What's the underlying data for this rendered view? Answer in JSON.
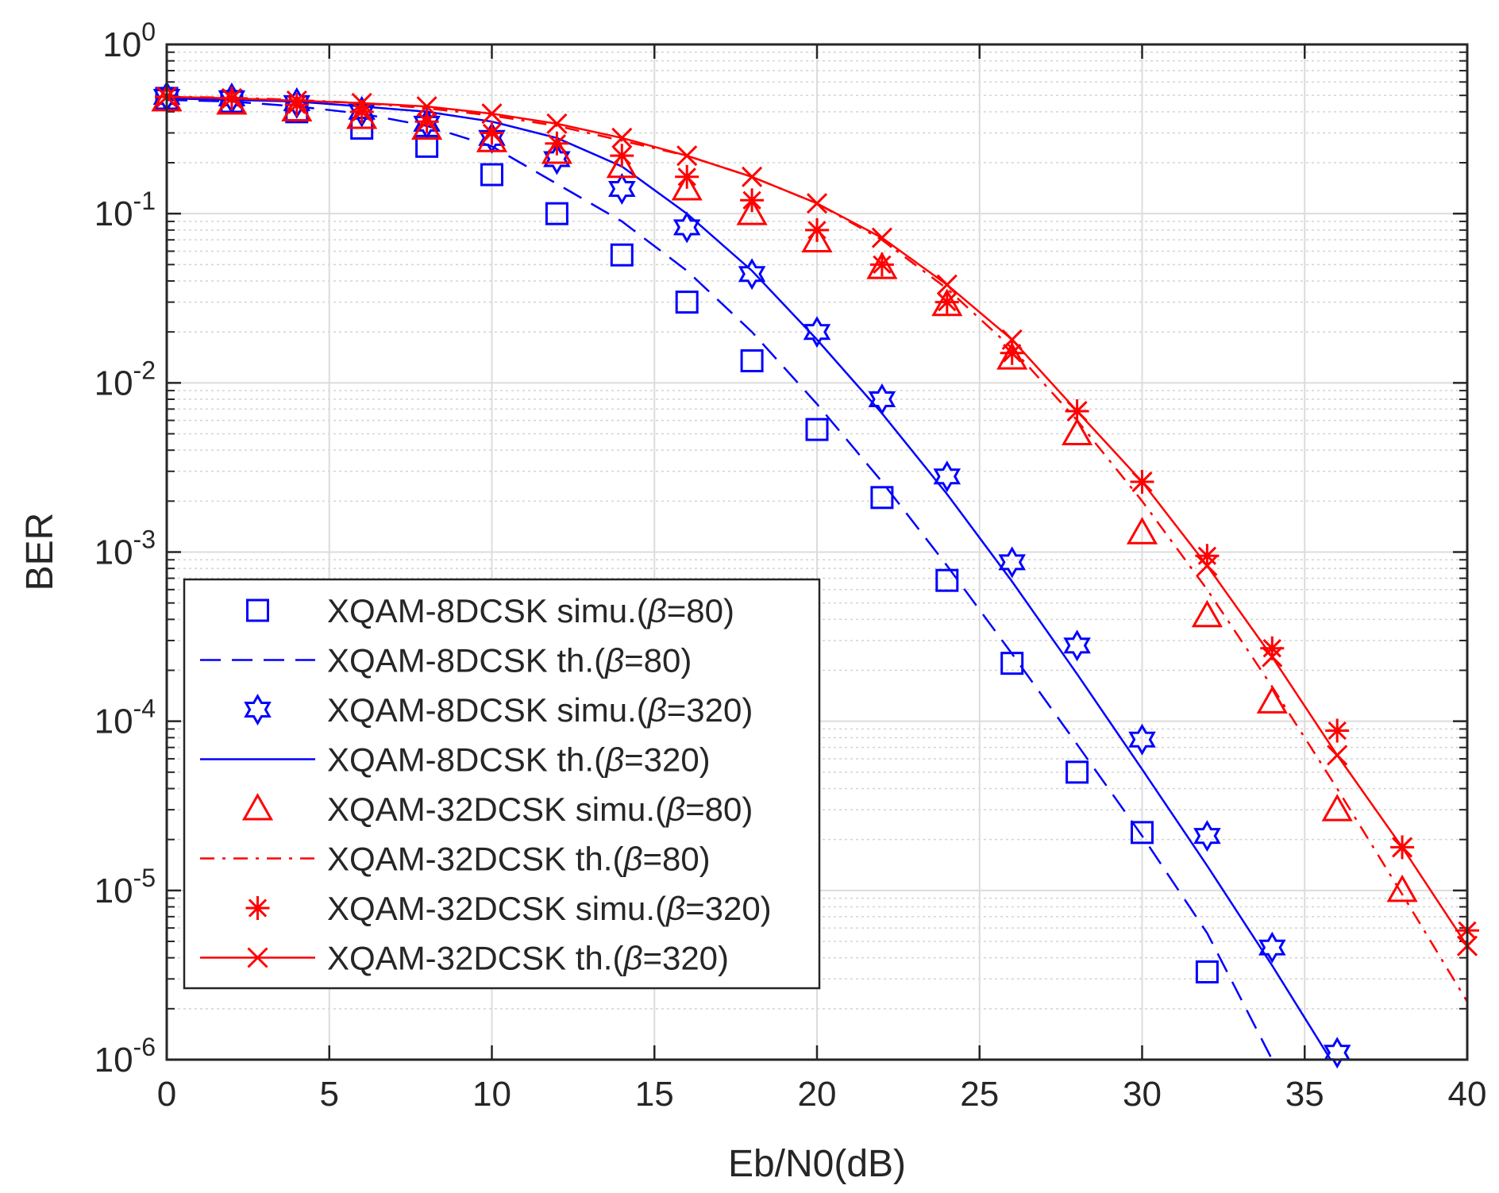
{
  "chart_data": {
    "type": "line",
    "title": "",
    "xlabel": "Eb/N0(dB)",
    "ylabel": "BER",
    "xlim": [
      0,
      40
    ],
    "ylim": [
      1e-06,
      1
    ],
    "yscale": "log",
    "grid": true,
    "minor_grid": true,
    "legend_position": "bottom-left",
    "x_ticks": [
      0,
      5,
      10,
      15,
      20,
      25,
      30,
      35,
      40
    ],
    "y_ticks": [
      {
        "value": 1,
        "base": "10",
        "exp": "0"
      },
      {
        "value": 0.1,
        "base": "10",
        "exp": "-1"
      },
      {
        "value": 0.01,
        "base": "10",
        "exp": "-2"
      },
      {
        "value": 0.001,
        "base": "10",
        "exp": "-3"
      },
      {
        "value": 0.0001,
        "base": "10",
        "exp": "-4"
      },
      {
        "value": 1e-05,
        "base": "10",
        "exp": "-5"
      },
      {
        "value": 1e-06,
        "base": "10",
        "exp": "-6"
      }
    ],
    "series": [
      {
        "name": "XQAM-8DCSK simu.(β=80)",
        "legend": {
          "prefix": "XQAM-8DCSK simu.(",
          "symbol": "β",
          "suffix": "=80)"
        },
        "color": "#0000ff",
        "line": "none",
        "marker": "square",
        "x": [
          0,
          2,
          4,
          6,
          8,
          10,
          12,
          14,
          16,
          18,
          20,
          22,
          24,
          26,
          28,
          30,
          32
        ],
        "y": [
          0.48,
          0.46,
          0.4,
          0.32,
          0.25,
          0.17,
          0.1,
          0.057,
          0.03,
          0.0135,
          0.0053,
          0.0021,
          0.00068,
          0.00022,
          5e-05,
          2.2e-05,
          3.3e-06
        ]
      },
      {
        "name": "XQAM-8DCSK th.(β=80)",
        "legend": {
          "prefix": "XQAM-8DCSK th.(",
          "symbol": "β",
          "suffix": "=80)"
        },
        "color": "#0000ff",
        "line": "dashed",
        "marker": "none",
        "x": [
          0,
          2,
          4,
          6,
          8,
          10,
          12,
          14,
          16,
          18,
          20,
          22,
          24,
          26,
          28,
          30,
          32,
          34
        ],
        "y": [
          0.47,
          0.46,
          0.43,
          0.39,
          0.33,
          0.25,
          0.15,
          0.09,
          0.046,
          0.02,
          0.0075,
          0.0026,
          0.00083,
          0.00025,
          7.3e-05,
          2.1e-05,
          5.6e-06,
          1e-06
        ]
      },
      {
        "name": "XQAM-8DCSK simu.(β=320)",
        "legend": {
          "prefix": "XQAM-8DCSK simu.(",
          "symbol": "β",
          "suffix": "=320)"
        },
        "color": "#0000ff",
        "line": "none",
        "marker": "hexagram",
        "x": [
          0,
          2,
          4,
          6,
          8,
          10,
          12,
          14,
          16,
          18,
          20,
          22,
          24,
          26,
          28,
          30,
          32,
          34,
          36
        ],
        "y": [
          0.49,
          0.48,
          0.45,
          0.4,
          0.34,
          0.28,
          0.21,
          0.14,
          0.083,
          0.044,
          0.02,
          0.008,
          0.0028,
          0.00087,
          0.00028,
          7.8e-05,
          2.1e-05,
          4.6e-06,
          1.1e-06
        ]
      },
      {
        "name": "XQAM-8DCSK th.(β=320)",
        "legend": {
          "prefix": "XQAM-8DCSK th.(",
          "symbol": "β",
          "suffix": "=320)"
        },
        "color": "#0000ff",
        "line": "solid",
        "marker": "none",
        "x": [
          0,
          2,
          4,
          6,
          8,
          10,
          12,
          14,
          16,
          18,
          20,
          22,
          24,
          26,
          28,
          30,
          32,
          34,
          35.8
        ],
        "y": [
          0.48,
          0.47,
          0.46,
          0.43,
          0.4,
          0.35,
          0.28,
          0.19,
          0.1,
          0.046,
          0.018,
          0.0066,
          0.0022,
          0.00067,
          0.00019,
          5.2e-05,
          1.4e-05,
          3.6e-06,
          1e-06
        ]
      },
      {
        "name": "XQAM-32DCSK simu.(β=80)",
        "legend": {
          "prefix": "XQAM-32DCSK simu.(",
          "symbol": "β",
          "suffix": "=80)"
        },
        "color": "#ff0000",
        "line": "none",
        "marker": "triangle",
        "x": [
          0,
          2,
          4,
          6,
          8,
          10,
          12,
          14,
          16,
          18,
          20,
          22,
          24,
          26,
          28,
          30,
          32,
          34,
          36,
          38
        ],
        "y": [
          0.47,
          0.45,
          0.41,
          0.37,
          0.32,
          0.27,
          0.23,
          0.19,
          0.14,
          0.1,
          0.069,
          0.048,
          0.029,
          0.014,
          0.005,
          0.0013,
          0.00042,
          0.00013,
          3e-05,
          1e-05
        ]
      },
      {
        "name": "XQAM-32DCSK th.(β=80)",
        "legend": {
          "prefix": "XQAM-32DCSK th.(",
          "symbol": "β",
          "suffix": "=80)"
        },
        "color": "#ff0000",
        "line": "dashdot",
        "marker": "none",
        "x": [
          0,
          2,
          4,
          6,
          8,
          10,
          12,
          14,
          16,
          18,
          20,
          22,
          24,
          26,
          28,
          30,
          32,
          34,
          36,
          38,
          40
        ],
        "y": [
          0.49,
          0.485,
          0.47,
          0.45,
          0.42,
          0.38,
          0.33,
          0.27,
          0.22,
          0.165,
          0.115,
          0.07,
          0.036,
          0.016,
          0.006,
          0.002,
          0.0006,
          0.00016,
          4e-05,
          9.5e-06,
          2.2e-06
        ]
      },
      {
        "name": "XQAM-32DCSK simu.(β=320)",
        "legend": {
          "prefix": "XQAM-32DCSK simu.(",
          "symbol": "β",
          "suffix": "=320)"
        },
        "color": "#ff0000",
        "line": "none",
        "marker": "asterisk",
        "x": [
          0,
          2,
          4,
          6,
          8,
          10,
          12,
          14,
          16,
          18,
          20,
          22,
          24,
          26,
          28,
          30,
          32,
          34,
          36,
          38,
          40
        ],
        "y": [
          0.49,
          0.48,
          0.44,
          0.4,
          0.35,
          0.3,
          0.26,
          0.22,
          0.165,
          0.12,
          0.08,
          0.05,
          0.03,
          0.015,
          0.0068,
          0.0026,
          0.00095,
          0.00027,
          8.8e-05,
          1.8e-05,
          5.8e-06
        ]
      },
      {
        "name": "XQAM-32DCSK th.(β=320)",
        "legend": {
          "prefix": "XQAM-32DCSK th.(",
          "symbol": "β",
          "suffix": "=320)"
        },
        "color": "#ff0000",
        "line": "solid",
        "marker": "x",
        "x": [
          0,
          2,
          4,
          6,
          8,
          10,
          12,
          14,
          16,
          18,
          20,
          22,
          24,
          26,
          28,
          30,
          32,
          34,
          36,
          38,
          40
        ],
        "y": [
          0.49,
          0.48,
          0.465,
          0.45,
          0.43,
          0.39,
          0.34,
          0.28,
          0.22,
          0.165,
          0.115,
          0.072,
          0.038,
          0.018,
          0.0068,
          0.0026,
          0.00083,
          0.00024,
          6.3e-05,
          1.8e-05,
          4.7e-06
        ]
      }
    ]
  }
}
